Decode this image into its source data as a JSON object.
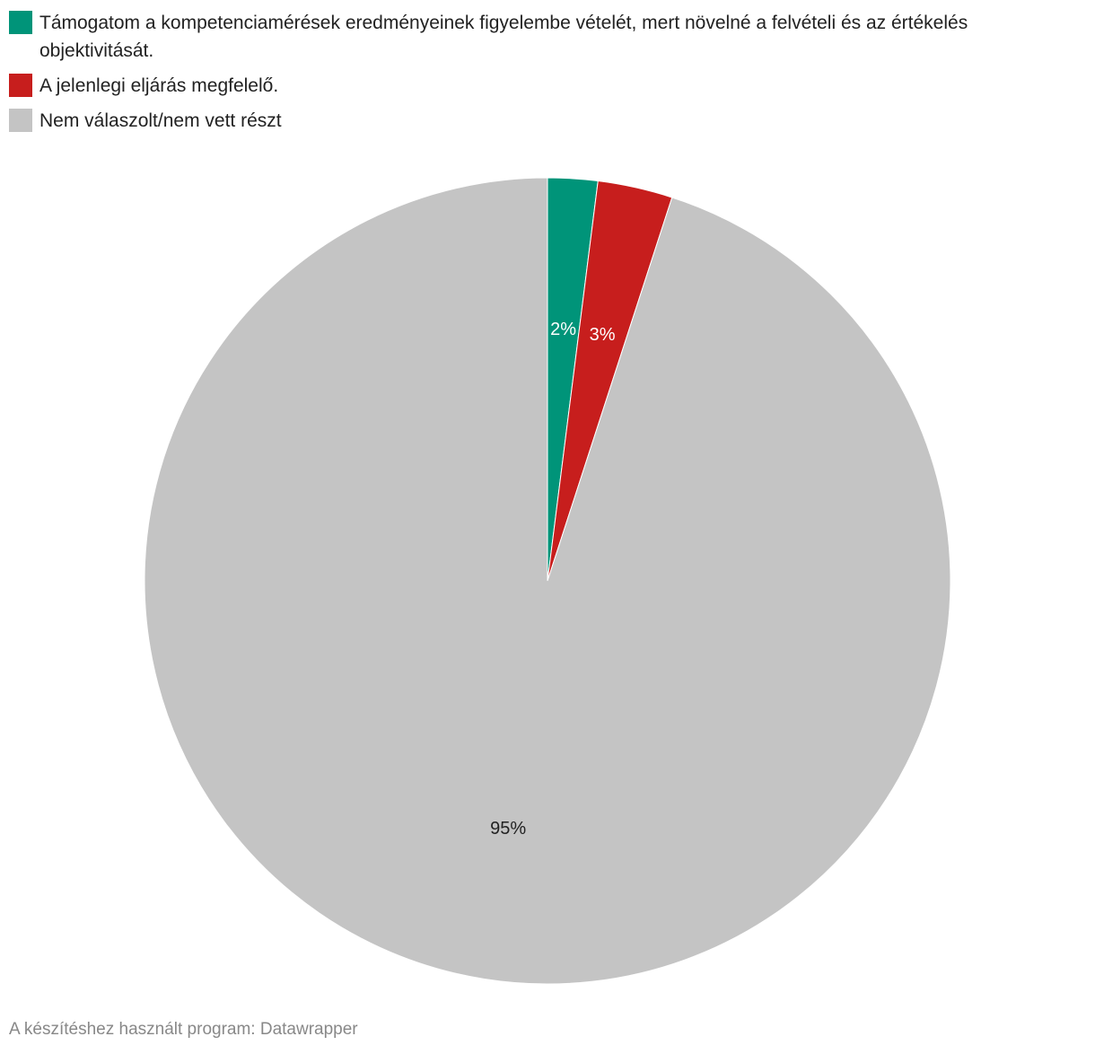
{
  "chart_data": {
    "type": "pie",
    "categories": [
      "Támogatom a kompetenciamérések eredményeinek figyelembe vételét, mert növelné a felvételi és az értékelés objektivitását.",
      "A jelenlegi eljárás megfelelő.",
      "Nem válaszolt/nem vett részt"
    ],
    "values": [
      2,
      3,
      95
    ],
    "value_labels": [
      "2%",
      "3%",
      "95%"
    ],
    "colors": [
      "#009479",
      "#c71e1d",
      "#c4c4c4"
    ],
    "source": "A készítéshez használt program: Datawrapper"
  }
}
